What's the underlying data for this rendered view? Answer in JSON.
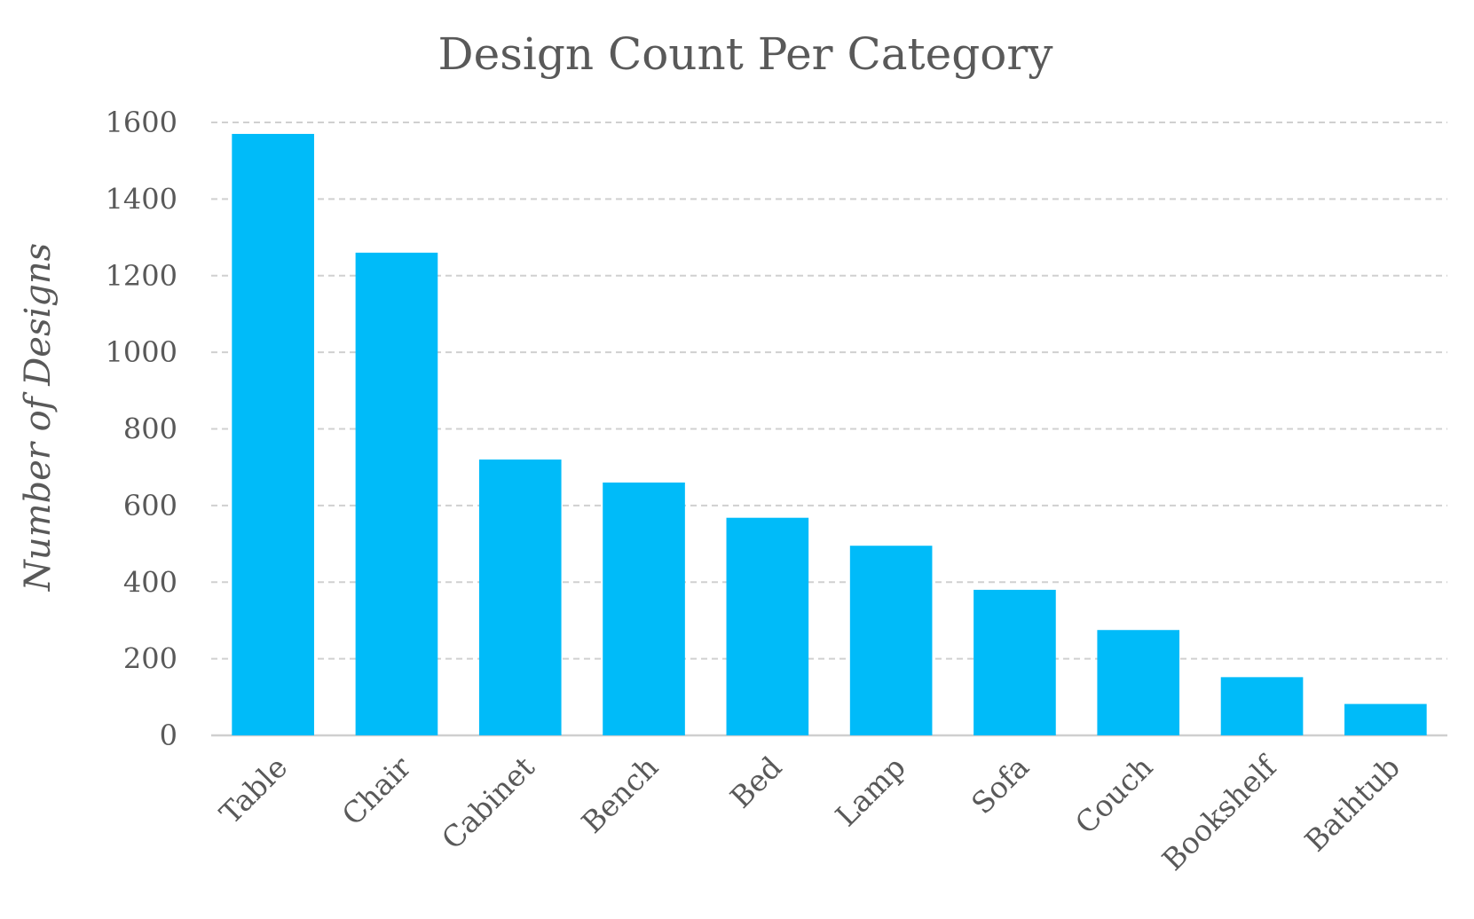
{
  "chart_data": {
    "type": "bar",
    "title": "Design Count Per Category",
    "xlabel": "",
    "ylabel": "Number of Designs",
    "categories": [
      "Table",
      "Chair",
      "Cabinet",
      "Bench",
      "Bed",
      "Lamp",
      "Sofa",
      "Couch",
      "Bookshelf",
      "Bathtub"
    ],
    "values": [
      1570,
      1260,
      720,
      660,
      568,
      495,
      380,
      275,
      152,
      82
    ],
    "ylim": [
      0,
      1600
    ],
    "yticks": [
      0,
      200,
      400,
      600,
      800,
      1000,
      1200,
      1400,
      1600
    ],
    "grid": true,
    "bar_color": "#00BBF9",
    "text_color": "#595959",
    "legend": "none"
  }
}
